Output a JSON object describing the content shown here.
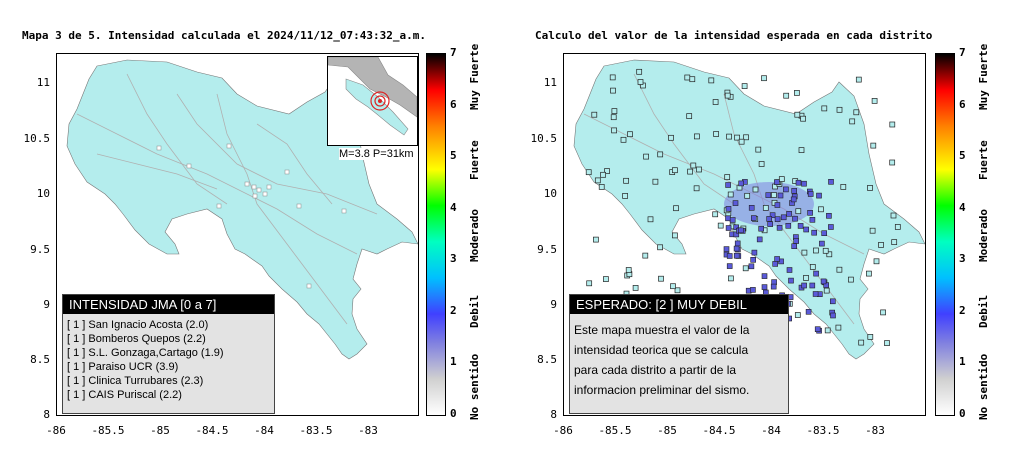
{
  "left": {
    "title": "Mapa 3 de 5. Intensidad calculada el 2024/11/12_07:43:32_a.m.",
    "legend_header": "INTENSIDAD JMA [0 a 7]",
    "stations": [
      "[ 1 ]  San Ignacio Acosta (2.0)",
      "[ 1 ]  Bomberos Quepos (2.2)",
      "[ 1 ]  S.L. Gonzaga,Cartago (1.9)",
      "[ 1 ]  Paraiso UCR (3.9)",
      "[ 1 ]  Clinica Turrubares (2.3)",
      "[ 1 ]  CAIS Puriscal (2.2)"
    ],
    "inset_label": "M=3.8  P=31km"
  },
  "right": {
    "title": "Calculo del valor de la intensidad esperada en cada distrito",
    "legend_header": "ESPERADO: [2 ] MUY DEBIL",
    "description": [
      "Este mapa muestra el valor de la",
      "intensidad teorica que se calcula",
      "para cada distrito a partir de la",
      "informacion preliminar del sismo."
    ]
  },
  "axes": {
    "yticks": [
      "11",
      "10.5",
      "10",
      "9.5",
      "9",
      "8.5",
      "8"
    ],
    "xticks": [
      "-86",
      "-85.5",
      "-85",
      "-84.5",
      "-84",
      "-83.5",
      "-83"
    ]
  },
  "colorbar": {
    "ticks": [
      "7",
      "6",
      "5",
      "4",
      "3",
      "2",
      "1",
      "0"
    ],
    "labels": [
      "Muy Fuerte",
      "Fuerte",
      "Moderado",
      "Debil",
      "No sentido"
    ]
  },
  "colors": {
    "land": "#b4eded",
    "roads": "#b0b0b0",
    "epicenter": "#dd2222",
    "marker_blue": "#5a5ad8",
    "marker_light": "#b4eded"
  }
}
